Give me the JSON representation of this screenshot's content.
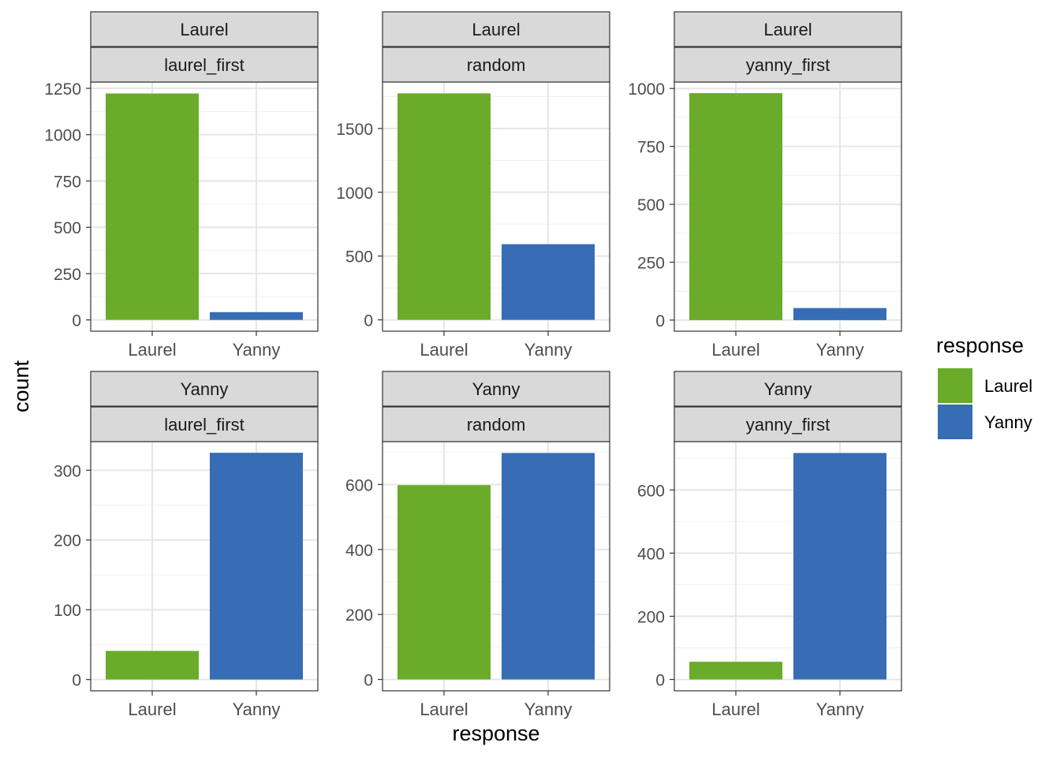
{
  "chart_data": {
    "type": "bar",
    "facet_rows": [
      "Laurel",
      "Yanny"
    ],
    "facet_cols": [
      "laurel_first",
      "random",
      "yanny_first"
    ],
    "categories": [
      "Laurel",
      "Yanny"
    ],
    "xlabel": "response",
    "ylabel": "count",
    "grid": true,
    "legend": {
      "title": "response",
      "position": "right",
      "entries": [
        {
          "label": "Laurel",
          "color": "#6aab2a"
        },
        {
          "label": "Yanny",
          "color": "#366db5"
        }
      ]
    },
    "panels": [
      {
        "row": "Laurel",
        "col": "laurel_first",
        "values": [
          1222,
          42
        ],
        "ylim": [
          -61,
          1284
        ],
        "yticks": [
          0,
          250,
          500,
          750,
          1000,
          1250
        ]
      },
      {
        "row": "Laurel",
        "col": "random",
        "values": [
          1775,
          593
        ],
        "ylim": [
          -89,
          1864
        ],
        "yticks": [
          0,
          500,
          1000,
          1500
        ]
      },
      {
        "row": "Laurel",
        "col": "yanny_first",
        "values": [
          980,
          52
        ],
        "ylim": [
          -48,
          1028
        ],
        "yticks": [
          0,
          250,
          500,
          750,
          1000
        ]
      },
      {
        "row": "Yanny",
        "col": "laurel_first",
        "values": [
          41,
          325
        ],
        "ylim": [
          -16.2,
          341
        ],
        "yticks": [
          0,
          100,
          200,
          300
        ]
      },
      {
        "row": "Yanny",
        "col": "random",
        "values": [
          598,
          697
        ],
        "ylim": [
          -35,
          732
        ],
        "yticks": [
          0,
          200,
          400,
          600
        ]
      },
      {
        "row": "Yanny",
        "col": "yanny_first",
        "values": [
          56,
          717
        ],
        "ylim": [
          -36,
          753
        ],
        "yticks": [
          0,
          200,
          400,
          600
        ]
      }
    ]
  }
}
